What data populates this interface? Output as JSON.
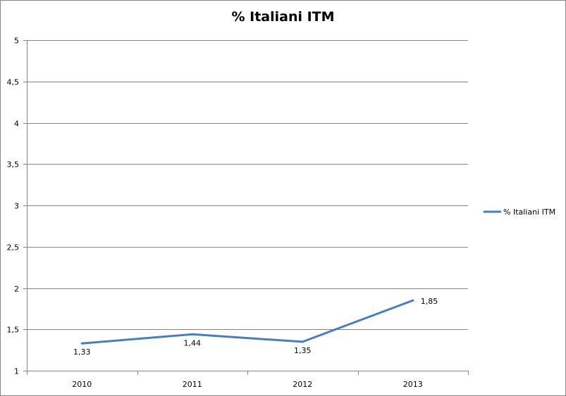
{
  "chart_data": {
    "type": "line",
    "title": "% Italiani ITM",
    "xlabel": "",
    "ylabel": "",
    "categories": [
      "2010",
      "2011",
      "2012",
      "2013"
    ],
    "series": [
      {
        "name": "% Italiani ITM",
        "values": [
          1.33,
          1.44,
          1.35,
          1.85
        ],
        "labels": [
          "1,33",
          "1,44",
          "1,35",
          "1,85"
        ],
        "color": "#4a7ebb"
      }
    ],
    "ylim": [
      1,
      5
    ],
    "yticks": [
      1,
      1.5,
      2,
      2.5,
      3,
      3.5,
      4,
      4.5,
      5
    ],
    "ytick_labels": [
      "1",
      "1,5",
      "2",
      "2,5",
      "3",
      "3,5",
      "4",
      "4,5",
      "5"
    ],
    "grid": true,
    "legend_position": "right",
    "colors": {
      "grid": "#868686",
      "axis": "#868686",
      "series": "#4a7ebb"
    }
  }
}
